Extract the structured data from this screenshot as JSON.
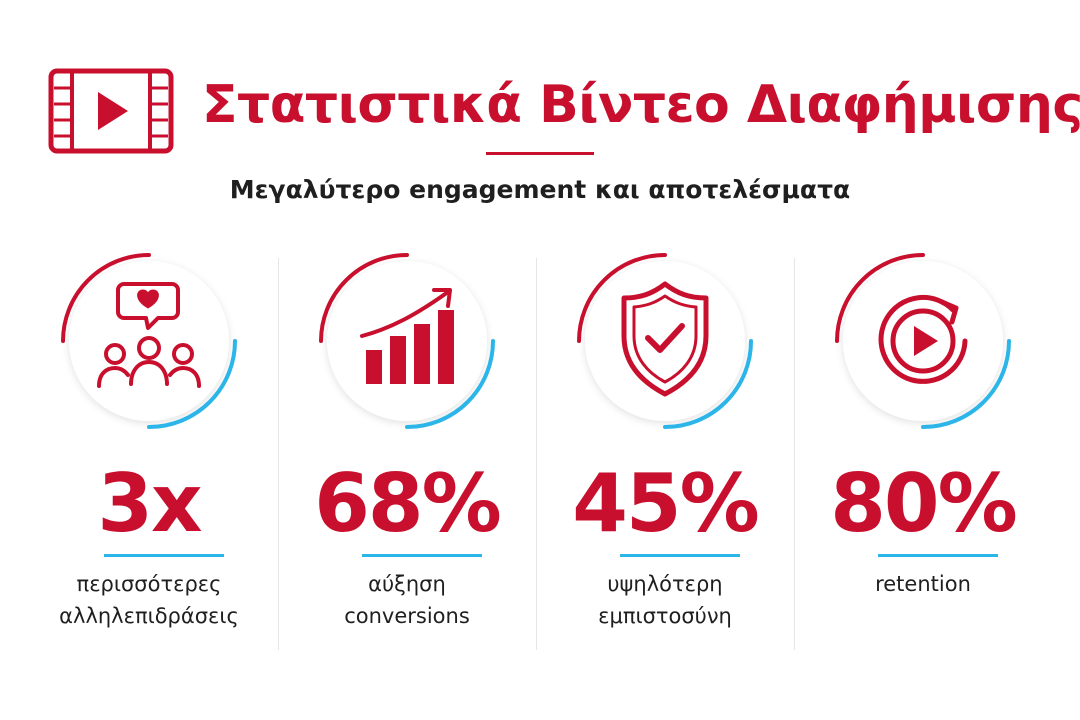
{
  "header": {
    "icon": "video-play-filmstrip-icon",
    "title": "Στατιστικά Βίντεο Διαφήμισης",
    "subtitle": "Μεγαλύτερο engagement και αποτελέσματα"
  },
  "colors": {
    "accent_red": "#c8102e",
    "accent_blue": "#2bb5e8",
    "text_dark": "#1f1f1f"
  },
  "stats": [
    {
      "icon": "audience-heart-speech-bubble-icon",
      "value": "3x",
      "label_line1": "περισσότερες",
      "label_line2": "αλληλεπιδράσεις"
    },
    {
      "icon": "growth-bar-chart-icon",
      "value": "68%",
      "label_line1": "αύξηση",
      "label_line2": "conversions"
    },
    {
      "icon": "shield-check-icon",
      "value": "45%",
      "label_line1": "υψηλότερη",
      "label_line2": "εμπιστοσύνη"
    },
    {
      "icon": "replay-play-icon",
      "value": "80%",
      "label_line1": "retention",
      "label_line2": ""
    }
  ]
}
